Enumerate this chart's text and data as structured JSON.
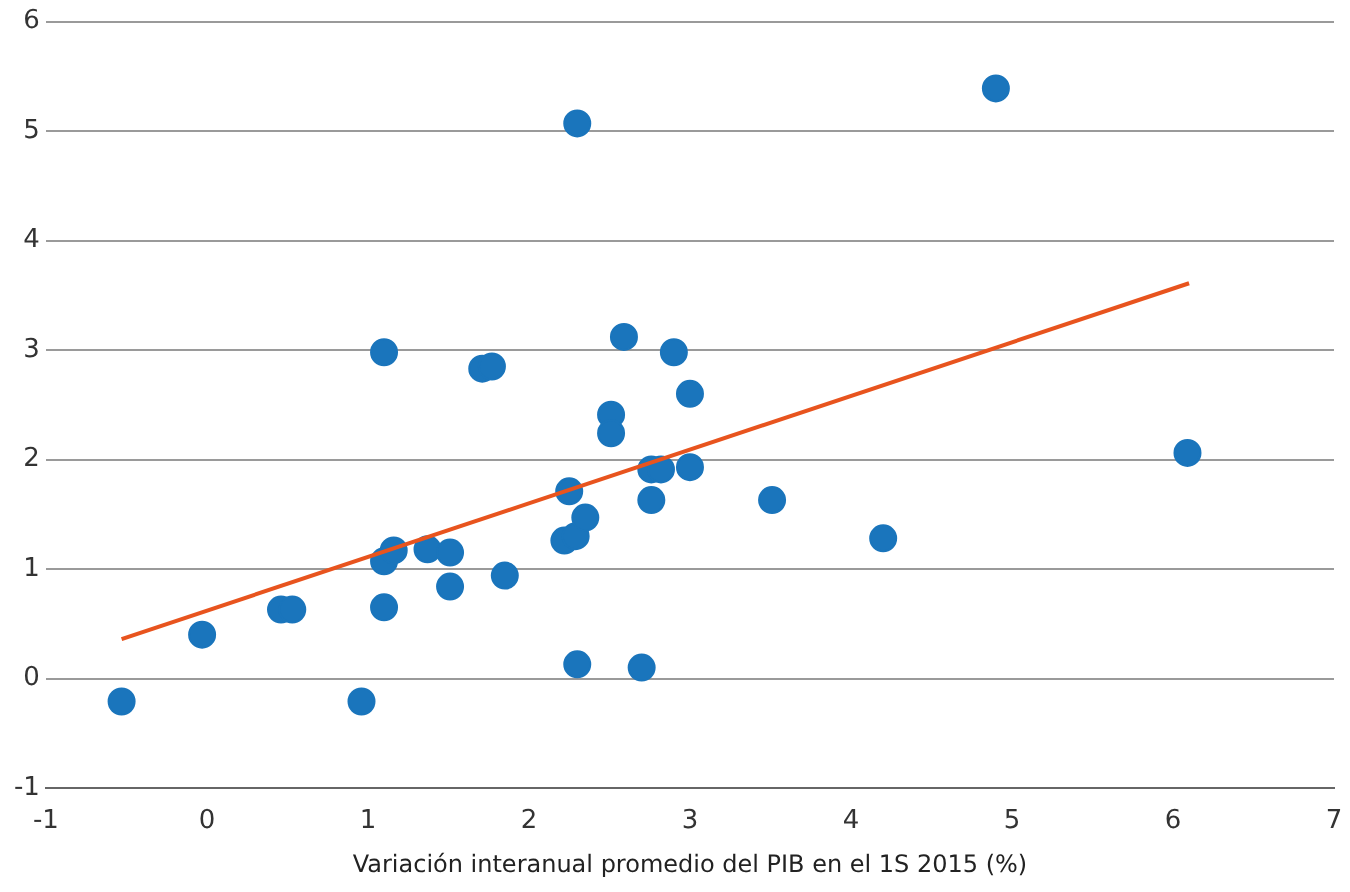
{
  "chart_data": {
    "type": "scatter",
    "xlabel": "Variación interanual promedio del PIB en el 1S 2015 (%)",
    "xlim": [
      -1,
      7
    ],
    "xticks": [
      -1,
      0,
      1,
      2,
      3,
      4,
      5,
      6,
      7
    ],
    "ylim": [
      -1,
      6
    ],
    "yticks": [
      -1,
      0,
      1,
      2,
      3,
      4,
      5,
      6
    ],
    "grid": "y",
    "legend": false,
    "marker": "circle",
    "series": [
      {
        "color": "#1a75bc",
        "x": [
          -0.53,
          -0.03,
          0.46,
          0.53,
          0.96,
          1.1,
          1.1,
          1.16,
          1.1,
          1.37,
          1.51,
          1.51,
          1.71,
          1.77,
          1.85,
          2.3,
          2.25,
          2.22,
          2.29,
          2.35,
          2.3,
          2.51,
          2.51,
          2.59,
          2.76,
          2.82,
          2.76,
          2.9,
          3.0,
          3.0,
          2.7,
          3.51,
          4.2,
          4.9,
          6.09
        ],
        "values": [
          -0.21,
          0.4,
          0.63,
          0.63,
          -0.21,
          2.98,
          1.07,
          1.17,
          0.65,
          1.18,
          1.15,
          0.84,
          2.83,
          2.85,
          0.94,
          5.07,
          1.71,
          1.26,
          1.3,
          1.47,
          0.13,
          2.41,
          2.24,
          3.12,
          1.91,
          1.91,
          1.63,
          2.98,
          2.6,
          1.93,
          0.1,
          1.63,
          1.28,
          5.39,
          2.06
        ]
      },
      {
        "type": "line",
        "color": "#e8541e",
        "marker": "none",
        "x": [
          -0.53,
          6.1
        ],
        "values": [
          0.36,
          3.61
        ]
      }
    ]
  }
}
